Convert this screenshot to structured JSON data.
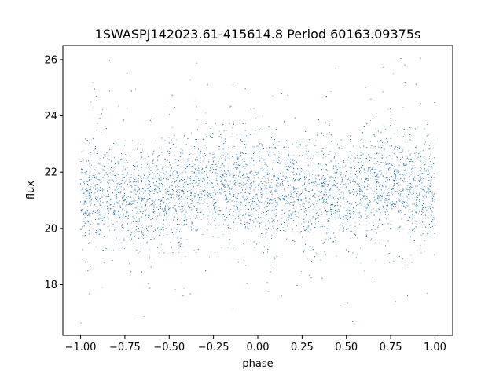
{
  "chart_data": {
    "type": "scatter",
    "title": "1SWASPJ142023.61-415614.8 Period 60163.09375s",
    "xlabel": "phase",
    "ylabel": "flux",
    "xlim": [
      -1.1,
      1.1
    ],
    "ylim": [
      16.2,
      26.5
    ],
    "xticks": [
      -1.0,
      -0.75,
      -0.5,
      -0.25,
      0.0,
      0.25,
      0.5,
      0.75,
      1.0
    ],
    "xtick_labels": [
      "−1.00",
      "−0.75",
      "−0.50",
      "−0.25",
      "0.00",
      "0.25",
      "0.50",
      "0.75",
      "1.00"
    ],
    "yticks": [
      18,
      20,
      22,
      24,
      26
    ],
    "ytick_labels": [
      "18",
      "20",
      "22",
      "24",
      "26"
    ],
    "grid": false,
    "legend": "none",
    "marker_color": "#1f77b4",
    "series": [
      {
        "phase_range": [
          -1.0,
          1.0
        ],
        "flux_center": 21.4,
        "flux_core_spread": 0.9,
        "flux_outlier_range": [
          16.6,
          26.1
        ],
        "trend_phase": [
          -1.0,
          -0.75,
          -0.5,
          -0.25,
          0.0,
          0.25,
          0.5,
          0.75,
          1.0
        ],
        "trend_flux": [
          21.3,
          21.1,
          21.1,
          21.7,
          21.4,
          21.3,
          21.2,
          21.7,
          21.3
        ]
      }
    ]
  }
}
